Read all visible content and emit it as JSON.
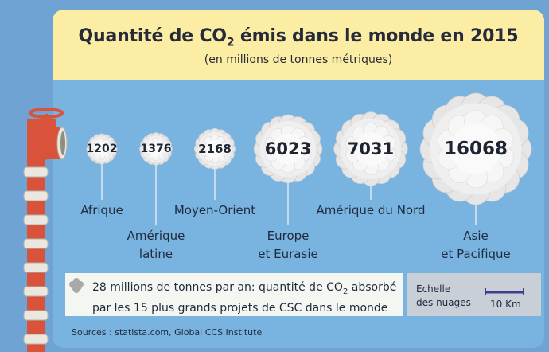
{
  "header": {
    "title_main": "Quantité de CO",
    "title_sub": "2",
    "title_end": " émis dans le monde en 2015",
    "subtitle": "(en millions de tonnes métriques)"
  },
  "chart_data": {
    "type": "bubble",
    "title": "Quantité de CO2 émis dans le monde en 2015",
    "subtitle": "(en millions de tonnes métriques)",
    "unit": "millions de tonnes métriques",
    "categories": [
      "Afrique",
      "Amérique latine",
      "Moyen-Orient",
      "Europe et Eurasie",
      "Amérique du Nord",
      "Asie et Pacifique"
    ],
    "values": [
      1202,
      1376,
      2168,
      6023,
      7031,
      16068
    ],
    "value_labels": [
      "1202",
      "1376",
      "2168",
      "6023",
      "7031",
      "16068"
    ],
    "labels": [
      [
        "Afrique"
      ],
      [
        "Amérique",
        "latine"
      ],
      [
        "Moyen-Orient"
      ],
      [
        "Europe",
        "et Eurasie"
      ],
      [
        "Amérique du Nord"
      ],
      [
        "Asie",
        "et Pacifique"
      ]
    ],
    "reference": {
      "value": 28,
      "text_line1": "28 millions de tonnes par an: quantité de CO",
      "text_sub": "2",
      "text_line1_end": " absorbé",
      "text_line2": "par les 15 plus grands projets de CSC dans le monde"
    },
    "scale": {
      "label_line1": "Echelle",
      "label_line2": "des nuages",
      "value": "10 Km"
    }
  },
  "source": "Sources : statista.com, Global CCS Institute",
  "colors": {
    "background": "#6fa3d3",
    "panel": "#79b3df",
    "header": "#fbeea4",
    "cloud": "#f2f2f2",
    "pipe": "#d9533a",
    "pipe_ring": "#e9e7df",
    "scale_bar": "#3d3f8f"
  }
}
